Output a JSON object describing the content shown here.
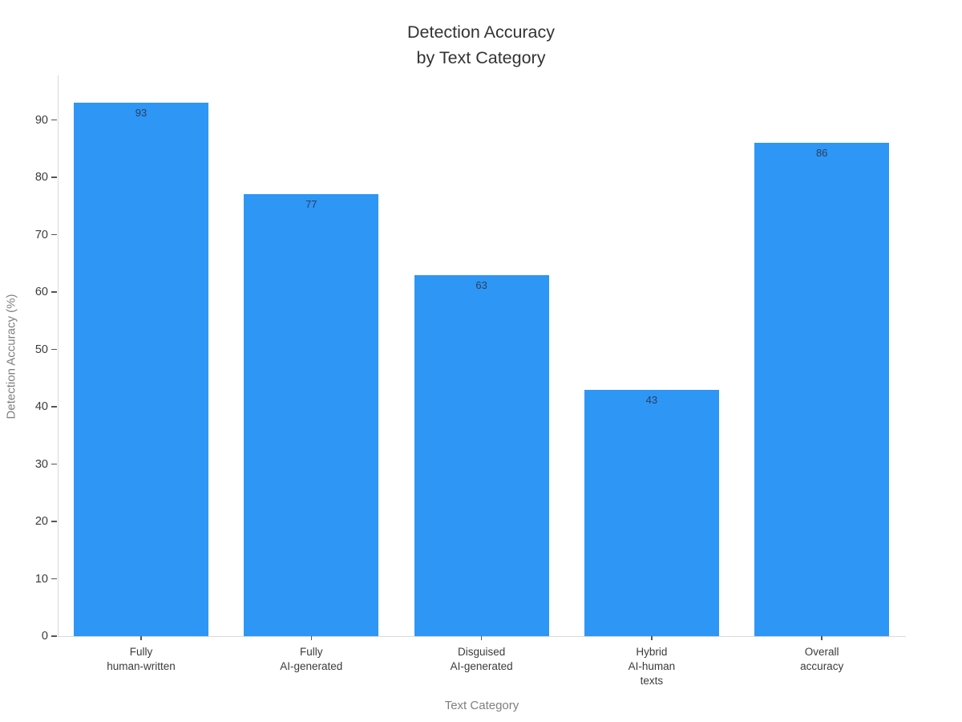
{
  "page": {
    "background": "#ffffff"
  },
  "chart_data": {
    "type": "bar",
    "title": "Detection Accuracy\nby Text Category",
    "xlabel": "Text Category",
    "ylabel": "Detection Accuracy (%)",
    "categories": [
      "Fully\nhuman-written",
      "Fully\nAI-generated",
      "Disguised\nAI-generated",
      "Hybrid\nAI-human\ntexts",
      "Overall\naccuracy"
    ],
    "values": [
      93,
      77,
      63,
      43,
      86
    ],
    "bar_labels": [
      "93",
      "77",
      "63",
      "43",
      "86"
    ],
    "yticks": [
      0,
      10,
      20,
      30,
      40,
      50,
      60,
      70,
      80,
      90
    ],
    "ylim": [
      0,
      97.8
    ],
    "grid": false,
    "legend": false,
    "colors": {
      "bar": "#2E96F5",
      "value_label": "#2a3f5f",
      "title": "#333333",
      "tick_label": "#3b3b3b",
      "axis_title": "#7f7f7f",
      "axis_line": "#d9d9d9",
      "tick_mark": "#555555"
    }
  }
}
